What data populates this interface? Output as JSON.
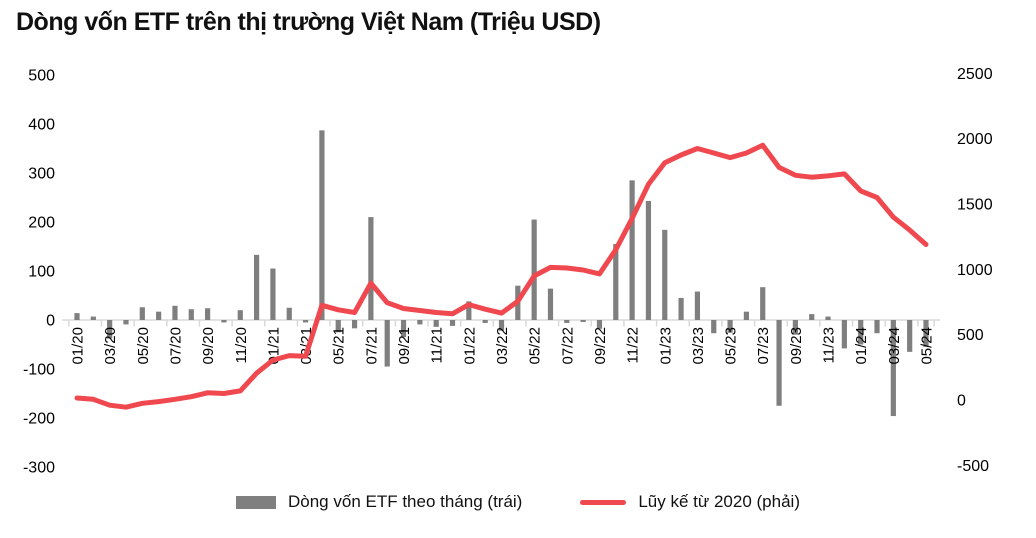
{
  "title": "Dòng vốn ETF trên thị trường Việt Nam (Triệu USD)",
  "colors": {
    "bar": "#7f7f7f",
    "line": "#f0484f",
    "axis_line": "#d9d9d9",
    "text": "#000000"
  },
  "legend": {
    "bars": {
      "label": "Dòng vốn ETF theo tháng (trái)"
    },
    "line": {
      "label": "Lũy kế từ 2020 (phải)"
    }
  },
  "chart_data": {
    "type": "combo",
    "title": "Dòng vốn ETF trên thị trường Việt Nam (Triệu USD)",
    "grid": false,
    "legend_position": "bottom",
    "x": [
      "01/20",
      "02/20",
      "03/20",
      "04/20",
      "05/20",
      "06/20",
      "07/20",
      "08/20",
      "09/20",
      "10/20",
      "11/20",
      "12/20",
      "01/21",
      "02/21",
      "03/21",
      "04/21",
      "05/21",
      "06/21",
      "07/21",
      "08/21",
      "09/21",
      "10/21",
      "11/21",
      "12/21",
      "01/22",
      "02/22",
      "03/22",
      "04/22",
      "05/22",
      "06/22",
      "07/22",
      "08/22",
      "09/22",
      "10/22",
      "11/22",
      "12/22",
      "01/23",
      "02/23",
      "03/23",
      "04/23",
      "05/23",
      "06/23",
      "07/23",
      "08/23",
      "09/23",
      "10/23",
      "11/23",
      "12/23",
      "01/24",
      "02/24",
      "03/24",
      "04/24",
      "05/24"
    ],
    "x_label_interval": 2,
    "x_labels_shown": [
      "01/20",
      "03/20",
      "05/20",
      "07/20",
      "09/20",
      "11/20",
      "01/21",
      "03/21",
      "05/21",
      "07/21",
      "09/21",
      "11/21",
      "01/22",
      "03/22",
      "05/22",
      "07/22",
      "09/22",
      "11/22",
      "01/23",
      "03/23",
      "05/23",
      "07/23",
      "09/23",
      "11/23",
      "01/24",
      "03/24",
      "05/24"
    ],
    "left_axis": {
      "min": -300,
      "max": 500,
      "step": 100,
      "ticks": [
        500,
        400,
        300,
        200,
        100,
        0,
        -100,
        -200,
        -300
      ]
    },
    "right_axis": {
      "min": -500,
      "max": 2500,
      "step": 500,
      "ticks": [
        2500,
        2000,
        1500,
        1000,
        500,
        0,
        -500
      ]
    },
    "series": [
      {
        "name": "Dòng vốn ETF theo tháng (trái)",
        "type": "bar",
        "axis": "left",
        "values": [
          14,
          7,
          -38,
          -9,
          26,
          17,
          29,
          22,
          24,
          -5,
          20,
          133,
          105,
          25,
          -5,
          387,
          -25,
          -17,
          210,
          -95,
          -35,
          -9,
          -14,
          -12,
          38,
          -6,
          -22,
          70,
          205,
          64,
          -6,
          -4,
          -18,
          155,
          285,
          243,
          184,
          45,
          58,
          -27,
          -26,
          17,
          67,
          -175,
          -30,
          12,
          7,
          -58,
          -50,
          -27,
          -196,
          -65,
          -55
        ]
      },
      {
        "name": "Lũy kế từ 2020 (phải)",
        "type": "line",
        "axis": "right",
        "values": [
          15,
          5,
          -40,
          -55,
          -25,
          -12,
          5,
          25,
          55,
          50,
          70,
          205,
          305,
          340,
          335,
          725,
          690,
          670,
          895,
          745,
          700,
          685,
          670,
          660,
          730,
          695,
          665,
          755,
          950,
          1015,
          1010,
          995,
          965,
          1150,
          1390,
          1650,
          1815,
          1875,
          1925,
          1890,
          1855,
          1890,
          1950,
          1780,
          1720,
          1705,
          1715,
          1730,
          1600,
          1550,
          1400,
          1300,
          1190
        ]
      }
    ]
  }
}
